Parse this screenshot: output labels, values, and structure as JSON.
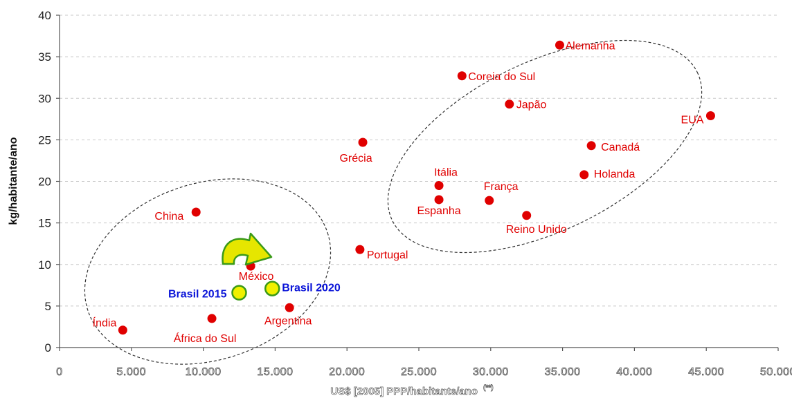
{
  "chart_data": {
    "type": "scatter",
    "title": "",
    "xlabel": "US$ [2005] PPP/habitante/ano",
    "xlabel_sup": "(**)",
    "ylabel": "kg/habitante/ano",
    "xlim": [
      0,
      50000
    ],
    "ylim": [
      0,
      40
    ],
    "x_ticks": [
      0,
      5000,
      10000,
      15000,
      20000,
      25000,
      30000,
      35000,
      40000,
      45000,
      50000
    ],
    "x_tick_labels": [
      "0",
      "5.000",
      "10.000",
      "15.000",
      "20.000",
      "25.000",
      "30.000",
      "35.000",
      "40.000",
      "45.000",
      "50.000"
    ],
    "y_ticks": [
      0,
      5,
      10,
      15,
      20,
      25,
      30,
      35,
      40
    ],
    "y_tick_labels": [
      "0",
      "5",
      "10",
      "15",
      "20",
      "25",
      "30",
      "35",
      "40"
    ],
    "grid": "horizontal dashed",
    "point_color": "#e00000",
    "highlight_color": "#f0f000",
    "highlight_label_color": "#0a14d8",
    "points": [
      {
        "label": "Índia",
        "x": 4400,
        "y": 2.1
      },
      {
        "label": "África do Sul",
        "x": 10600,
        "y": 3.5
      },
      {
        "label": "China",
        "x": 9500,
        "y": 16.3
      },
      {
        "label": "México",
        "x": 13300,
        "y": 9.8
      },
      {
        "label": "Argentina",
        "x": 16000,
        "y": 4.8
      },
      {
        "label": "Portugal",
        "x": 20900,
        "y": 11.8
      },
      {
        "label": "Grécia",
        "x": 21100,
        "y": 24.7
      },
      {
        "label": "Itália",
        "x": 26400,
        "y": 19.5
      },
      {
        "label": "Espanha",
        "x": 26400,
        "y": 17.8
      },
      {
        "label": "Coreia do Sul",
        "x": 28000,
        "y": 32.7
      },
      {
        "label": "França",
        "x": 29900,
        "y": 17.7
      },
      {
        "label": "Japão",
        "x": 31300,
        "y": 29.3
      },
      {
        "label": "Reino Unido",
        "x": 32500,
        "y": 15.9
      },
      {
        "label": "Alemanha",
        "x": 34800,
        "y": 36.4
      },
      {
        "label": "Holanda",
        "x": 36500,
        "y": 20.8
      },
      {
        "label": "Canadá",
        "x": 37000,
        "y": 24.3
      },
      {
        "label": "EUA",
        "x": 45300,
        "y": 27.9
      }
    ],
    "highlights": [
      {
        "label": "Brasil 2015",
        "x": 12500,
        "y": 6.6
      },
      {
        "label": "Brasil 2020",
        "x": 14800,
        "y": 7.1
      }
    ]
  }
}
